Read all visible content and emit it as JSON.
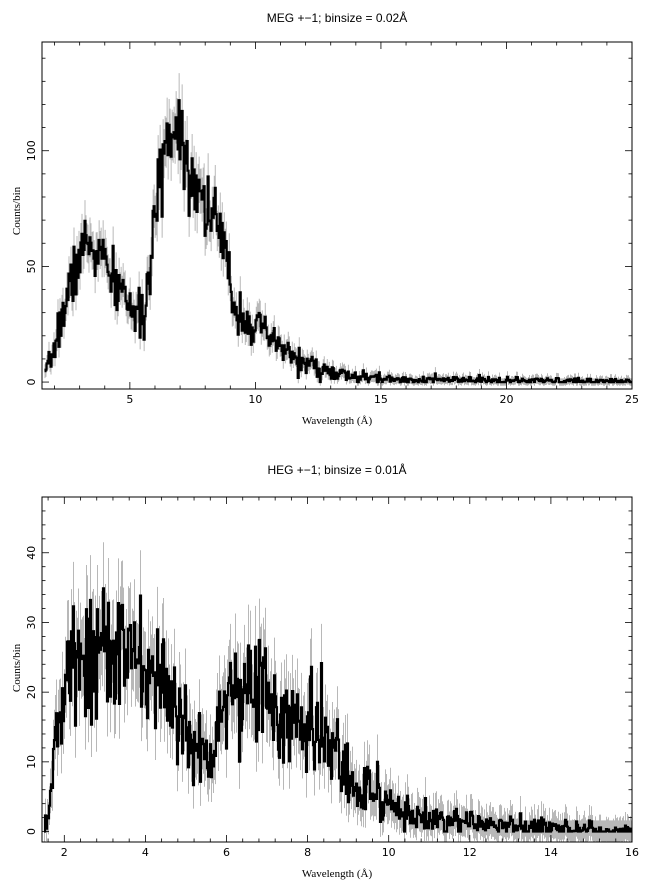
{
  "chart_data": [
    {
      "type": "line",
      "title": "MEG +−1; binsize = 0.02Å",
      "xlabel": "Wavelength (Å)",
      "ylabel": "Counts/bin",
      "xlim": [
        1.5,
        25
      ],
      "ylim": [
        -3,
        147
      ],
      "xticks": [
        5,
        10,
        15,
        20,
        25
      ],
      "yticks": [
        0,
        50,
        100
      ],
      "grid": false,
      "series": [
        {
          "x": [
            1.6,
            1.8,
            2.0,
            2.2,
            2.4,
            2.6,
            2.8,
            3.0,
            3.2,
            3.4,
            3.6,
            3.8,
            4.0,
            4.2,
            4.4,
            4.6,
            4.8,
            5.0,
            5.2,
            5.4,
            5.6,
            5.8,
            6.0,
            6.2,
            6.4,
            6.6,
            6.8,
            7.0,
            7.2,
            7.4,
            7.6,
            7.8,
            8.0,
            8.2,
            8.4,
            8.6,
            8.8,
            9.0,
            9.2,
            9.4,
            9.6,
            9.8,
            10.0,
            10.5,
            11.0,
            11.5,
            12.0,
            12.5,
            13.0,
            13.5,
            14.0,
            15.0,
            16.0,
            17.0,
            18.0,
            19.0,
            20.0,
            21.0,
            22.0,
            23.0,
            24.0,
            25.0
          ],
          "y": [
            2,
            8,
            15,
            25,
            32,
            40,
            48,
            55,
            58,
            60,
            57,
            55,
            52,
            45,
            42,
            40,
            38,
            35,
            28,
            26,
            32,
            45,
            68,
            92,
            102,
            108,
            112,
            110,
            100,
            92,
            88,
            82,
            78,
            75,
            70,
            62,
            55,
            42,
            32,
            30,
            28,
            26,
            24,
            19,
            15,
            11,
            8,
            6,
            4,
            3,
            2,
            1.5,
            1,
            1,
            0.8,
            0.7,
            0.6,
            0.5,
            0.5,
            0.4,
            0.4,
            0.3
          ]
        }
      ]
    },
    {
      "type": "line",
      "title": "HEG +−1; binsize = 0.01Å",
      "xlabel": "Wavelength (Å)",
      "ylabel": "Counts/bin",
      "xlim": [
        1.45,
        16
      ],
      "ylim": [
        -1.5,
        48
      ],
      "xticks": [
        2,
        4,
        6,
        8,
        10,
        12,
        14,
        16
      ],
      "yticks": [
        0,
        10,
        20,
        30,
        40
      ],
      "grid": false,
      "series": [
        {
          "x": [
            1.5,
            1.6,
            1.7,
            1.8,
            1.9,
            2.0,
            2.2,
            2.4,
            2.6,
            2.8,
            3.0,
            3.2,
            3.4,
            3.6,
            3.8,
            4.0,
            4.2,
            4.4,
            4.6,
            4.8,
            5.0,
            5.2,
            5.4,
            5.6,
            5.8,
            6.0,
            6.2,
            6.4,
            6.6,
            6.8,
            7.0,
            7.2,
            7.4,
            7.6,
            7.8,
            8.0,
            8.2,
            8.4,
            8.6,
            8.8,
            9.0,
            9.2,
            9.4,
            9.6,
            9.8,
            10.0,
            10.2,
            10.4,
            10.6,
            10.8,
            11.0,
            11.5,
            12.0,
            12.5,
            13.0,
            13.5,
            14.0,
            14.5,
            15.0,
            15.5,
            16.0
          ],
          "y": [
            1,
            3,
            8,
            13,
            17,
            20,
            23,
            25,
            26,
            27,
            27,
            26,
            25,
            24,
            24,
            23,
            22,
            21,
            19,
            17,
            15,
            12,
            11,
            12,
            16,
            20,
            21,
            20,
            21,
            22,
            19,
            17,
            16,
            15,
            15,
            15,
            14,
            13,
            12,
            10,
            8,
            7,
            6,
            5,
            4.5,
            4,
            3.5,
            3,
            2.5,
            2,
            1.8,
            1.5,
            1.2,
            1,
            0.8,
            0.6,
            0.5,
            0.4,
            0.3,
            0.2,
            0.2
          ]
        }
      ]
    }
  ]
}
